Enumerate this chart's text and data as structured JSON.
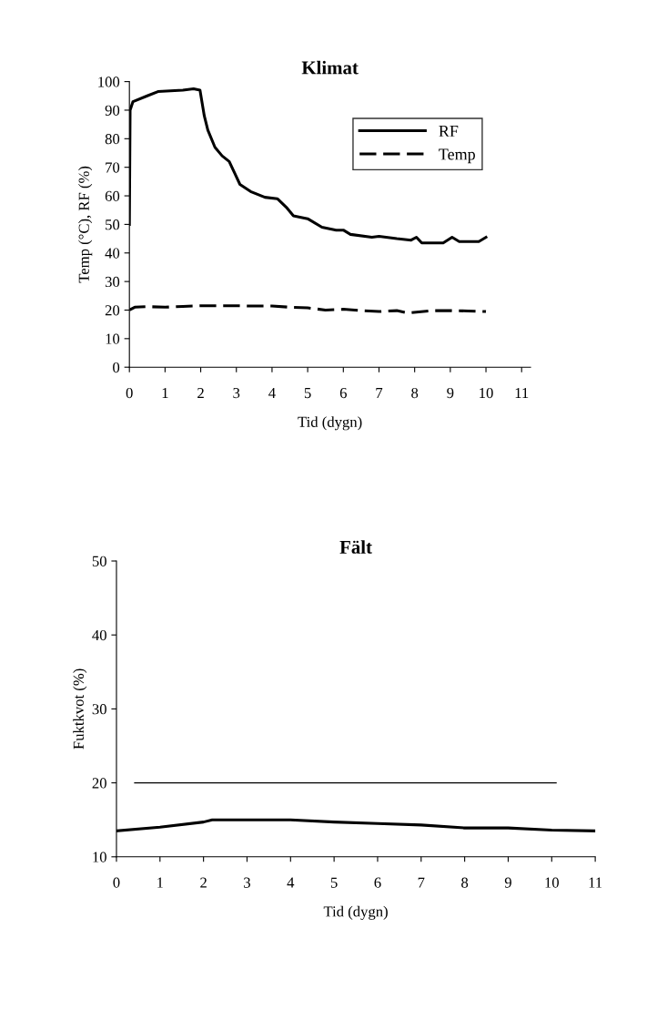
{
  "chart_data": [
    {
      "type": "line",
      "title": "Klimat",
      "xlabel": "Tid (dygn)",
      "ylabel": "Temp (°C), RF (%)",
      "xlim": [
        0,
        11.25
      ],
      "xticks": [
        0,
        1,
        2,
        3,
        4,
        5,
        6,
        7,
        8,
        9,
        10,
        11
      ],
      "ylim": [
        0,
        100
      ],
      "yticks": [
        0,
        10,
        20,
        30,
        40,
        50,
        60,
        70,
        80,
        90,
        100
      ],
      "legend": "top right",
      "grid": false,
      "series": [
        {
          "name": "RF",
          "color": "#000000",
          "line_style": "solid",
          "x": [
            0,
            0.02,
            0.1,
            0.5,
            0.8,
            1.5,
            1.8,
            1.98,
            2.1,
            2.2,
            2.4,
            2.6,
            2.8,
            2.95,
            3.1,
            3.4,
            3.8,
            4.15,
            4.4,
            4.6,
            5,
            5.4,
            5.8,
            6,
            6.2,
            6.8,
            7,
            7.5,
            7.9,
            8.05,
            8.2,
            8.8,
            9.05,
            9.25,
            9.8,
            10
          ],
          "values": [
            50,
            90,
            93,
            95,
            96.5,
            97,
            97.5,
            97,
            88,
            83,
            77,
            74,
            72,
            68,
            64,
            61.5,
            59.5,
            59,
            56,
            53,
            52,
            49,
            48,
            48,
            46.5,
            45.5,
            45.8,
            45,
            44.5,
            45.5,
            43.5,
            43.5,
            45.5,
            44,
            44,
            45.5
          ]
        },
        {
          "name": "Temp",
          "color": "#000000",
          "line_style": "dashed",
          "x": [
            0,
            0.15,
            0.5,
            1,
            1.5,
            2,
            2.5,
            3,
            3.5,
            4,
            4.5,
            5,
            5.5,
            6,
            6.5,
            7,
            7.5,
            7.8,
            8.5,
            9,
            9.5,
            10
          ],
          "values": [
            20,
            21,
            21.2,
            21,
            21.3,
            21.5,
            21.5,
            21.5,
            21.4,
            21.4,
            21,
            20.8,
            20,
            20.3,
            19.8,
            19.5,
            19.8,
            19,
            19.8,
            19.8,
            19.7,
            19.5
          ]
        }
      ]
    },
    {
      "type": "line",
      "title": "Fält",
      "xlabel": "Tid (dygn)",
      "ylabel": "Fuktkvot (%)",
      "xlim": [
        0,
        11
      ],
      "xticks": [
        0,
        1,
        2,
        3,
        4,
        5,
        6,
        7,
        8,
        9,
        10,
        11
      ],
      "ylim": [
        10,
        50
      ],
      "yticks": [
        10,
        20,
        30,
        40,
        50
      ],
      "legend": false,
      "grid": false,
      "series": [
        {
          "color": "#000000",
          "line_style": "solid",
          "x": [
            0,
            1,
            2,
            2.2,
            3,
            4,
            5,
            6,
            7,
            8,
            9,
            10,
            11
          ],
          "values": [
            13.5,
            14.0,
            14.7,
            15.0,
            15.0,
            15.0,
            14.7,
            14.5,
            14.3,
            13.9,
            13.9,
            13.6,
            13.5
          ]
        },
        {
          "color": "#000000",
          "line_style": "solid",
          "x": [
            0.42,
            10.1
          ],
          "values": [
            20,
            20
          ]
        }
      ]
    }
  ]
}
